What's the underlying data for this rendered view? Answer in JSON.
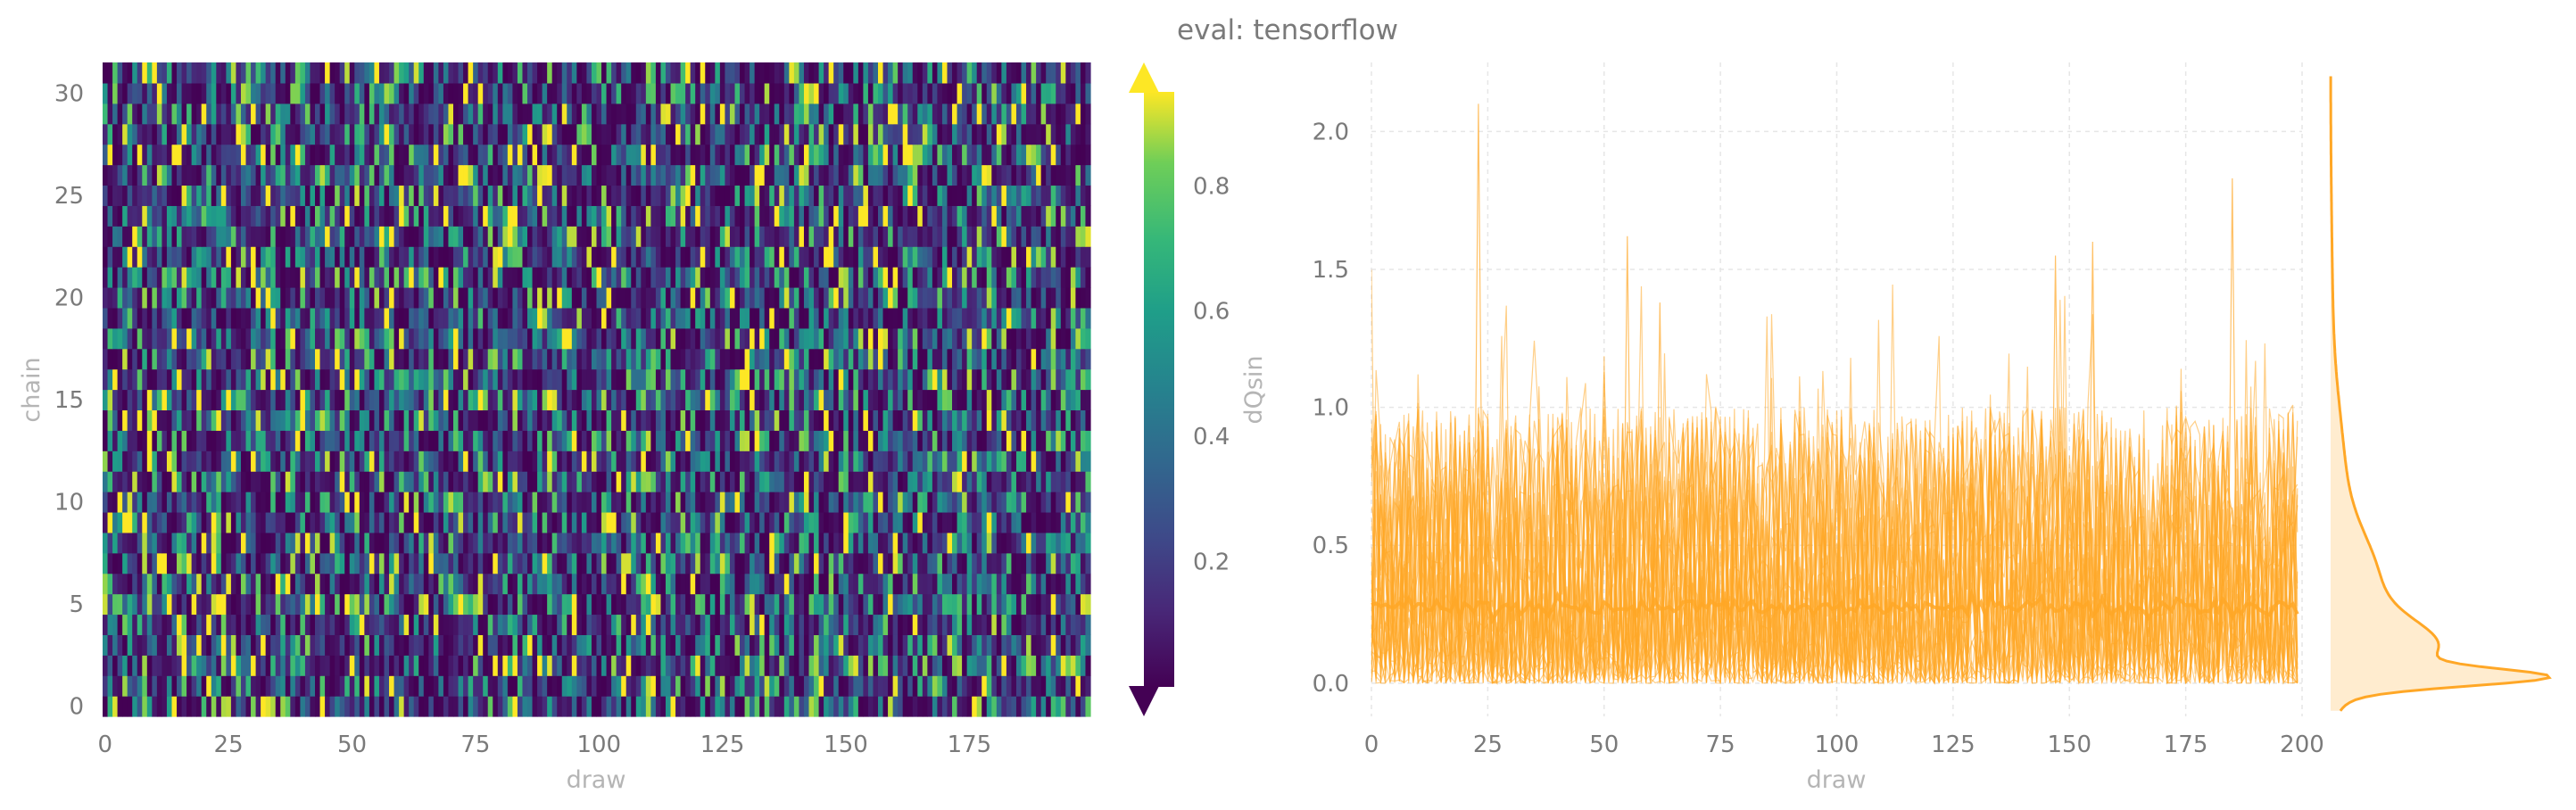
{
  "title": "eval: tensorflow",
  "chart_data": [
    {
      "type": "heatmap",
      "xlabel": "draw",
      "ylabel": "chain",
      "x_range": [
        0,
        199
      ],
      "y_range": [
        0,
        31
      ],
      "n_draws": 200,
      "n_chains": 32,
      "x_ticks": [
        "0",
        "25",
        "50",
        "75",
        "100",
        "125",
        "150",
        "175"
      ],
      "y_ticks": [
        "0",
        "5",
        "10",
        "15",
        "20",
        "25",
        "30"
      ],
      "colorbar": {
        "label": "dQsin",
        "colormap": "viridis",
        "range": [
          0,
          0.95
        ],
        "extend": "both",
        "ticks": [
          "0.2",
          "0.4",
          "0.6",
          "0.8"
        ]
      }
    },
    {
      "type": "line",
      "xlabel": "draw",
      "ylabel": "",
      "xlim": [
        0,
        200
      ],
      "ylim": [
        -0.12,
        2.25
      ],
      "x_ticks": [
        "0",
        "25",
        "50",
        "75",
        "100",
        "125",
        "150",
        "175",
        "200"
      ],
      "y_ticks": [
        "0.0",
        "0.5",
        "1.0",
        "1.5",
        "2.0"
      ],
      "grid": true,
      "color": "#FFA726",
      "series_count": 32,
      "mean_line": 0.25,
      "marginal": "kde"
    }
  ]
}
